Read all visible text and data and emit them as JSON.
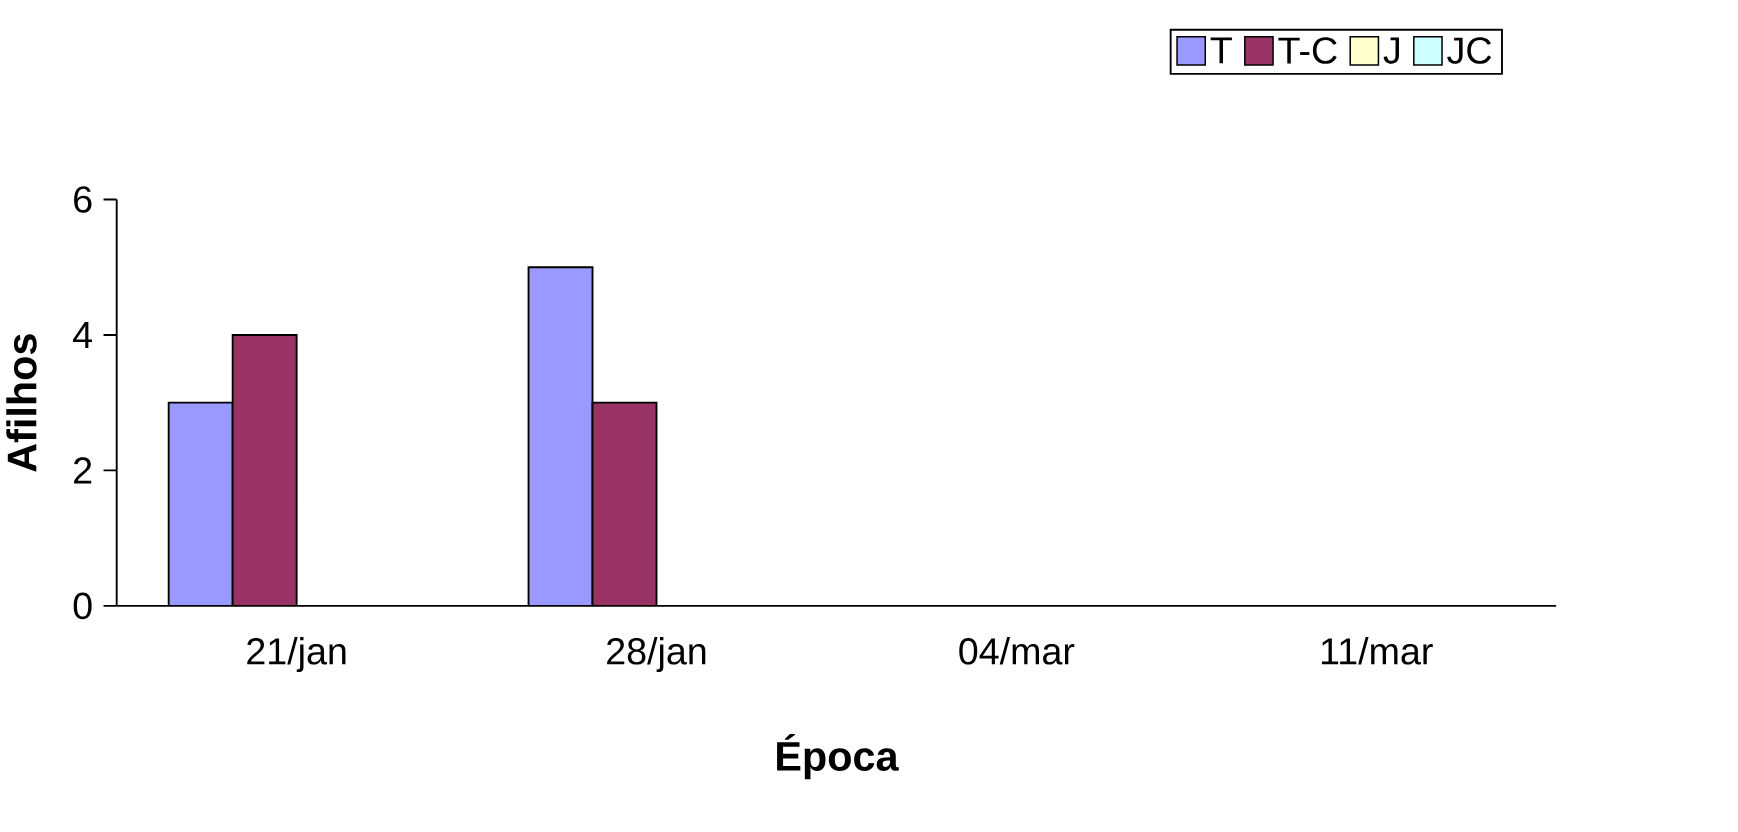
{
  "chart_data": {
    "type": "bar",
    "xlabel": "Época",
    "ylabel": "Afilhos",
    "categories": [
      "21/jan",
      "28/jan",
      "04/mar",
      "11/mar"
    ],
    "series": [
      {
        "name": "T",
        "color": "#9999ff",
        "values": [
          3,
          5,
          null,
          null
        ]
      },
      {
        "name": "T-C",
        "color": "#993366",
        "values": [
          4,
          3,
          null,
          null
        ]
      },
      {
        "name": "J",
        "color": "#ffffcc",
        "values": [
          null,
          null,
          null,
          null
        ]
      },
      {
        "name": "JC",
        "color": "#ccffff",
        "values": [
          null,
          null,
          null,
          null
        ]
      }
    ],
    "ylim": [
      0,
      6
    ],
    "yticks": [
      0,
      2,
      4,
      6
    ],
    "grid": false,
    "legend": "top right"
  }
}
